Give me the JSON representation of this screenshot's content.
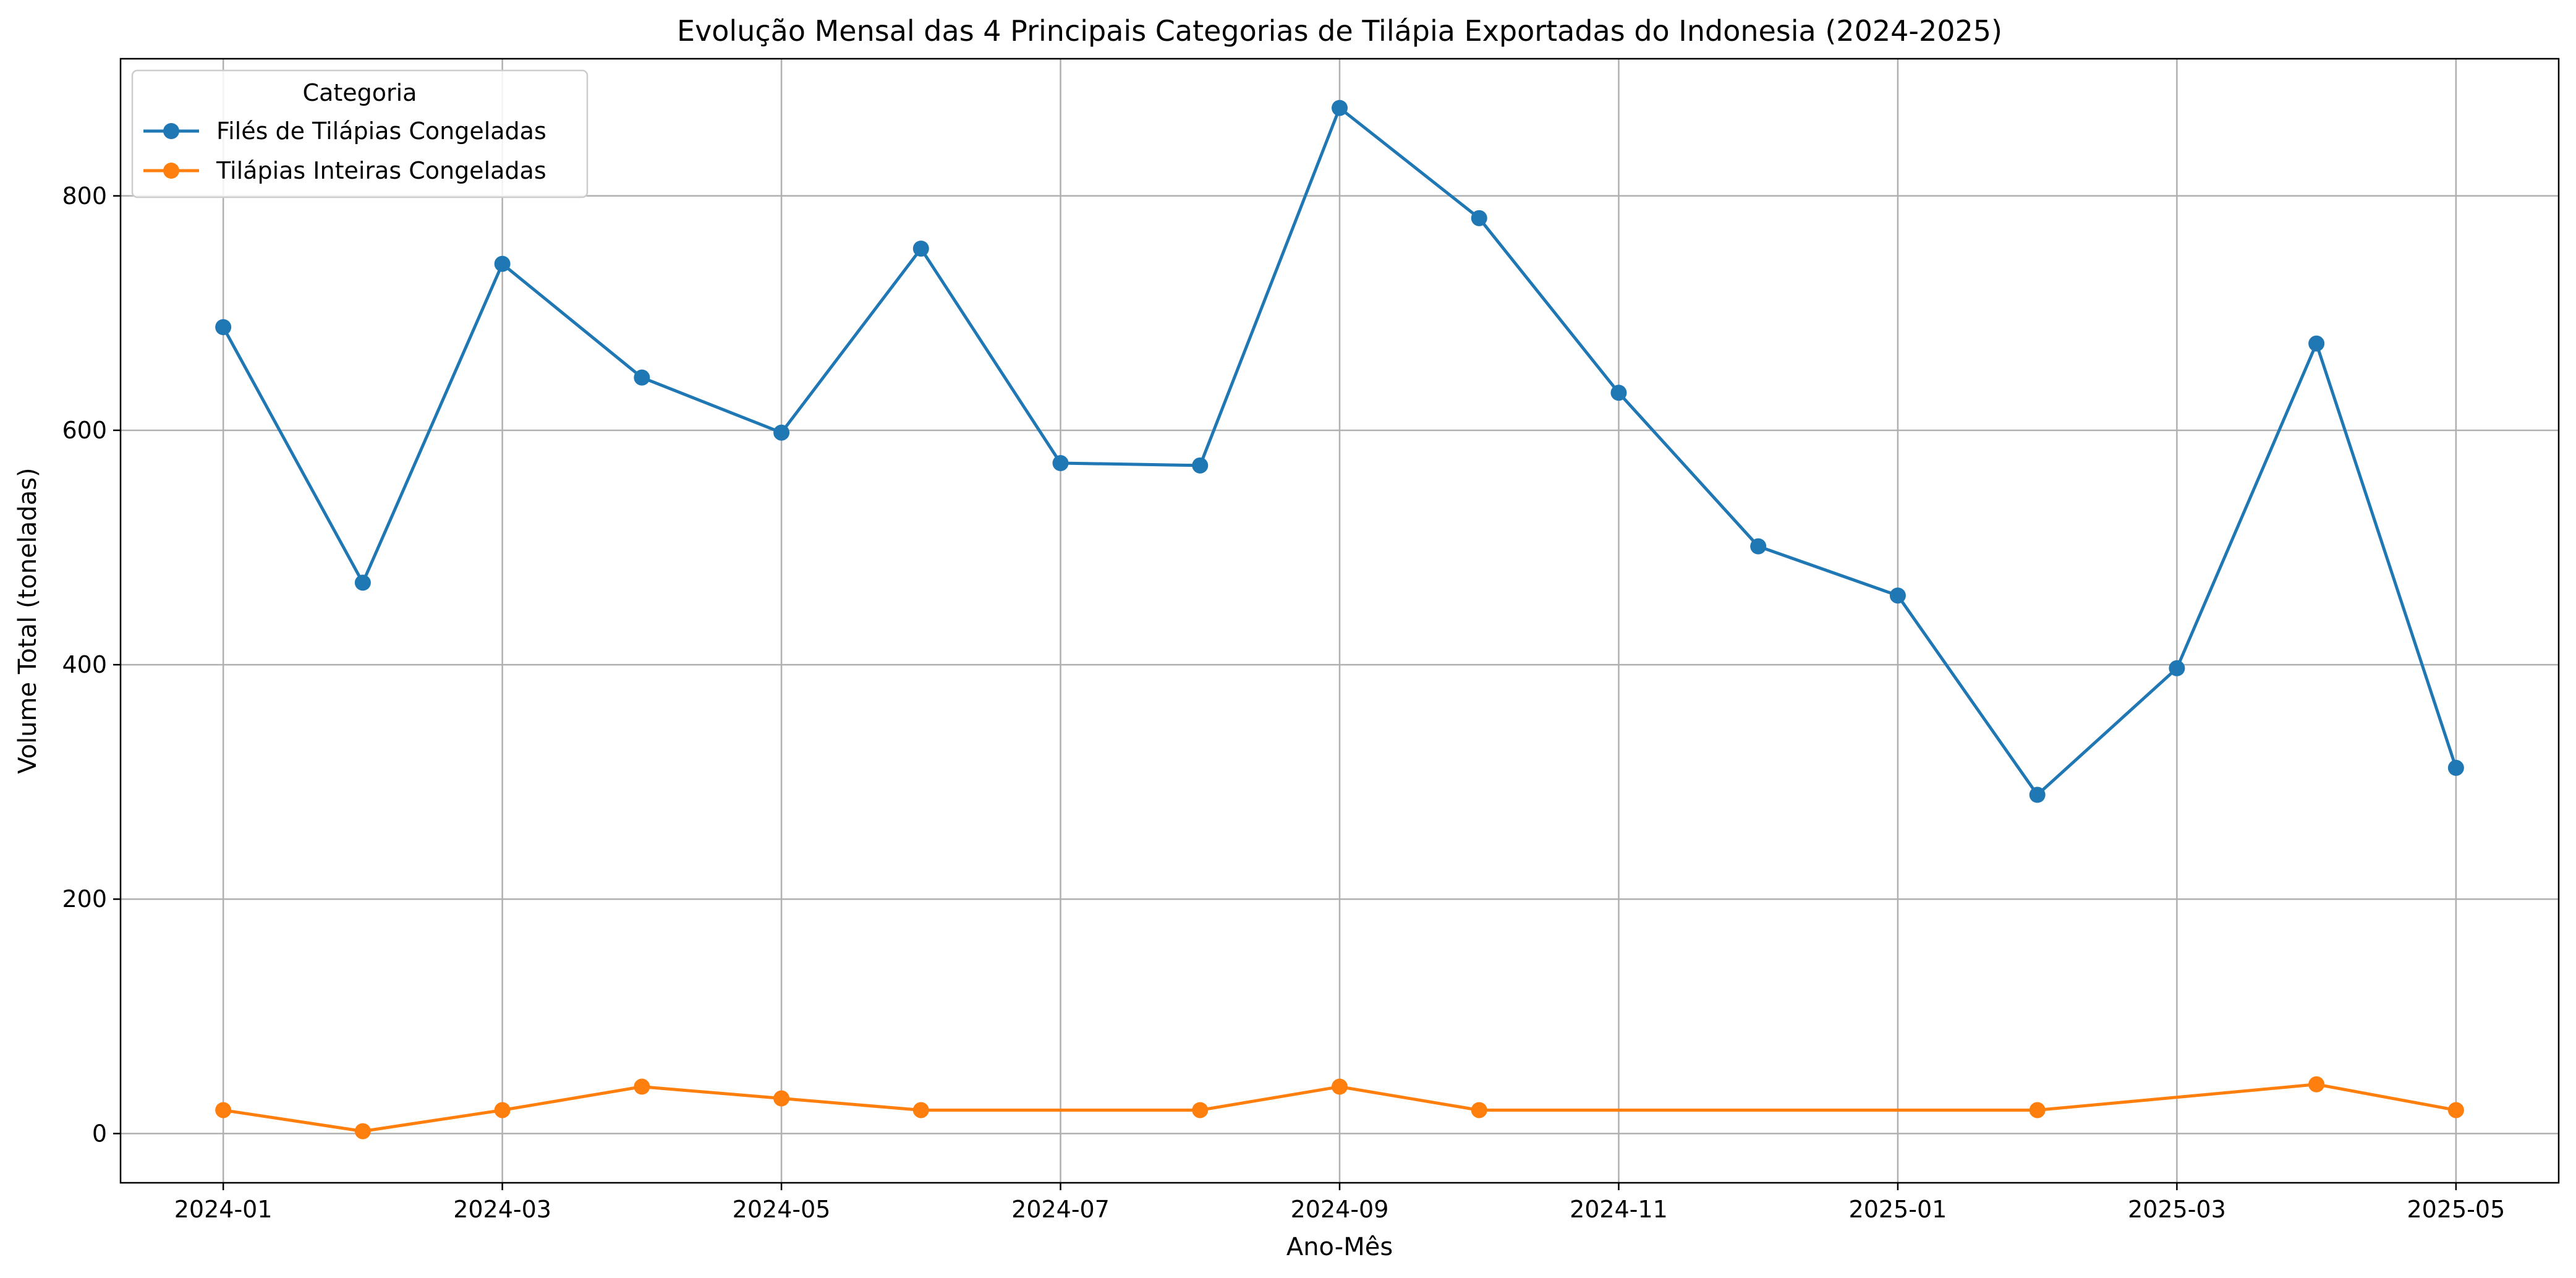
{
  "chart_data": {
    "type": "line",
    "title": "Evolução Mensal das 4 Principais Categorias de Tilápia Exportadas do Indonesia (2024-2025)",
    "xlabel": "Ano-Mês",
    "ylabel": "Volume Total (toneladas)",
    "x_tick_labels": [
      "2024-01",
      "2024-03",
      "2024-05",
      "2024-07",
      "2024-09",
      "2024-11",
      "2025-01",
      "2025-03",
      "2025-05"
    ],
    "y_ticks": [
      0,
      200,
      400,
      600,
      800
    ],
    "ylim": [
      -42,
      917
    ],
    "grid": true,
    "legend": {
      "title": "Categoria",
      "placement": "top-left"
    },
    "series": [
      {
        "name": "Filés de Tilápias Congeladas",
        "color": "#1f77b4",
        "points": [
          {
            "x": "2024-01",
            "y": 688
          },
          {
            "x": "2024-02",
            "y": 470
          },
          {
            "x": "2024-03",
            "y": 742
          },
          {
            "x": "2024-04",
            "y": 645
          },
          {
            "x": "2024-05",
            "y": 598
          },
          {
            "x": "2024-06",
            "y": 755
          },
          {
            "x": "2024-07",
            "y": 572
          },
          {
            "x": "2024-08",
            "y": 570
          },
          {
            "x": "2024-09",
            "y": 875
          },
          {
            "x": "2024-10",
            "y": 781
          },
          {
            "x": "2024-11",
            "y": 632
          },
          {
            "x": "2024-12",
            "y": 501
          },
          {
            "x": "2025-01",
            "y": 459
          },
          {
            "x": "2025-02",
            "y": 289
          },
          {
            "x": "2025-03",
            "y": 397
          },
          {
            "x": "2025-04",
            "y": 674
          },
          {
            "x": "2025-05",
            "y": 312
          }
        ]
      },
      {
        "name": "Tilápias Inteiras Congeladas",
        "color": "#ff7f0e",
        "points": [
          {
            "x": "2024-01",
            "y": 20
          },
          {
            "x": "2024-02",
            "y": 2
          },
          {
            "x": "2024-03",
            "y": 20
          },
          {
            "x": "2024-04",
            "y": 40
          },
          {
            "x": "2024-05",
            "y": 30
          },
          {
            "x": "2024-06",
            "y": 20
          },
          {
            "x": "2024-08",
            "y": 20
          },
          {
            "x": "2024-09",
            "y": 40
          },
          {
            "x": "2024-10",
            "y": 20
          },
          {
            "x": "2025-02",
            "y": 20
          },
          {
            "x": "2025-04",
            "y": 42
          },
          {
            "x": "2025-05",
            "y": 20
          }
        ]
      }
    ]
  }
}
